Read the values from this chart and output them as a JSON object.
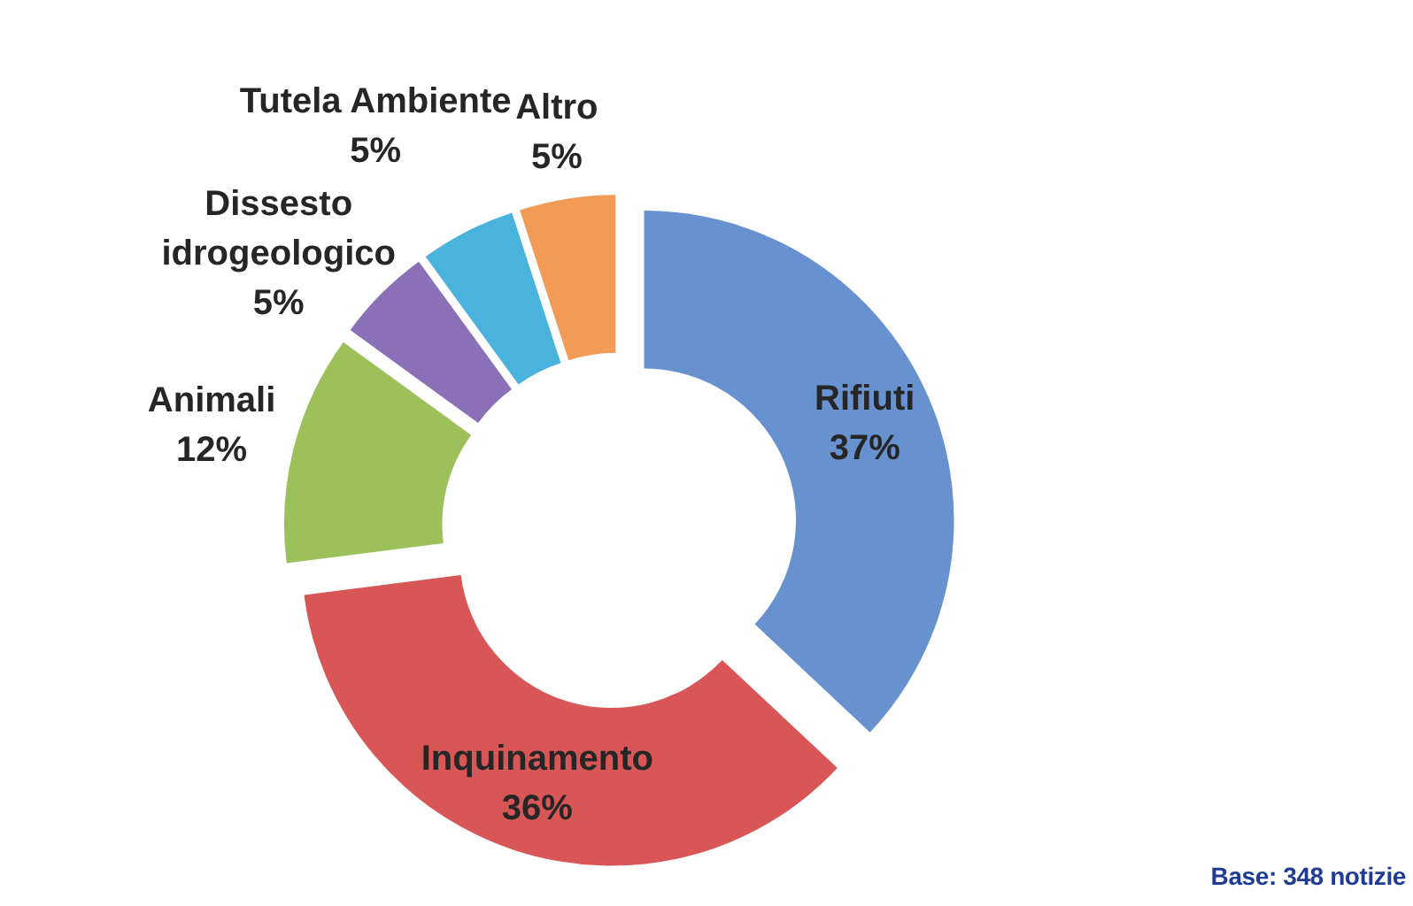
{
  "chart_data": {
    "type": "donut",
    "categories": [
      "Rifiuti",
      "Inquinamento",
      "Animali",
      "Dissesto idrogeologico",
      "Tutela Ambiente",
      "Altro"
    ],
    "values": [
      37,
      36,
      12,
      5,
      5,
      5
    ],
    "value_labels": [
      "37%",
      "36%",
      "12%",
      "5%",
      "5%",
      "5%"
    ],
    "colors": [
      "#6792cf",
      "#d85656",
      "#9cc15b",
      "#8a70b6",
      "#4ab3dd",
      "#f29b57"
    ],
    "annotations": [
      "Base: 348 notizie"
    ]
  }
}
